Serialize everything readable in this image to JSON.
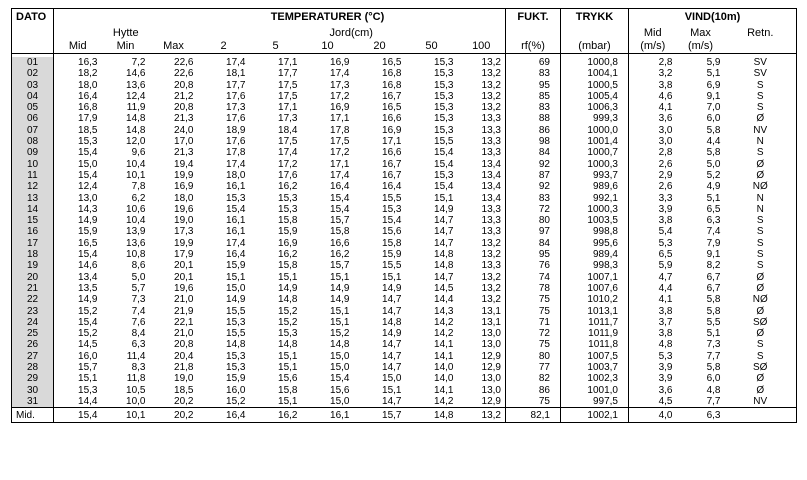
{
  "header": {
    "dato": "DATO",
    "temperaturer": "TEMPERATURER (°C)",
    "fukt": "FUKT.",
    "trykk": "TRYKK",
    "vind": "VIND(10m)",
    "hytte": "Hytte",
    "jord": "Jord(cm)",
    "vind_mid": "Mid",
    "vind_max": "Max",
    "retn": "Retn.",
    "col_mid": "Mid",
    "col_min": "Min",
    "col_max": "Max",
    "depth_2": "2",
    "depth_5": "5",
    "depth_10": "10",
    "depth_20": "20",
    "depth_50": "50",
    "depth_100": "100",
    "rf_unit": "rf(%)",
    "mbar_unit": "(mbar)",
    "ms_unit_mid": "(m/s)",
    "ms_unit_max": "(m/s)"
  },
  "rows": [
    [
      "01",
      "16,3",
      "7,2",
      "22,6",
      "17,4",
      "17,1",
      "16,9",
      "16,5",
      "15,3",
      "13,2",
      "69",
      "1000,8",
      "2,8",
      "5,9",
      "SV"
    ],
    [
      "02",
      "18,2",
      "14,6",
      "22,6",
      "18,1",
      "17,7",
      "17,4",
      "16,8",
      "15,3",
      "13,2",
      "83",
      "1004,1",
      "3,2",
      "5,1",
      "SV"
    ],
    [
      "03",
      "18,0",
      "13,6",
      "20,8",
      "17,7",
      "17,5",
      "17,3",
      "16,8",
      "15,3",
      "13,2",
      "95",
      "1000,5",
      "3,8",
      "6,9",
      "S"
    ],
    [
      "04",
      "16,4",
      "12,4",
      "21,2",
      "17,6",
      "17,5",
      "17,2",
      "16,7",
      "15,3",
      "13,2",
      "85",
      "1005,4",
      "4,6",
      "9,1",
      "S"
    ],
    [
      "05",
      "16,8",
      "11,9",
      "20,8",
      "17,3",
      "17,1",
      "16,9",
      "16,5",
      "15,3",
      "13,2",
      "83",
      "1006,3",
      "4,1",
      "7,0",
      "S"
    ],
    [
      "06",
      "17,9",
      "14,8",
      "21,3",
      "17,6",
      "17,3",
      "17,1",
      "16,6",
      "15,3",
      "13,3",
      "88",
      "999,3",
      "3,6",
      "6,0",
      "Ø"
    ],
    [
      "07",
      "18,5",
      "14,8",
      "24,0",
      "18,9",
      "18,4",
      "17,8",
      "16,9",
      "15,3",
      "13,3",
      "86",
      "1000,0",
      "3,0",
      "5,8",
      "NV"
    ],
    [
      "08",
      "15,3",
      "12,0",
      "17,0",
      "17,6",
      "17,5",
      "17,5",
      "17,1",
      "15,5",
      "13,3",
      "98",
      "1001,4",
      "3,0",
      "4,4",
      "N"
    ],
    [
      "09",
      "15,4",
      "9,6",
      "21,3",
      "17,8",
      "17,4",
      "17,2",
      "16,6",
      "15,4",
      "13,3",
      "84",
      "1000,7",
      "2,8",
      "5,8",
      "S"
    ],
    [
      "10",
      "15,0",
      "10,4",
      "19,4",
      "17,4",
      "17,2",
      "17,1",
      "16,7",
      "15,4",
      "13,4",
      "92",
      "1000,3",
      "2,6",
      "5,0",
      "Ø"
    ],
    [
      "11",
      "15,4",
      "10,1",
      "19,9",
      "18,0",
      "17,6",
      "17,4",
      "16,7",
      "15,3",
      "13,4",
      "87",
      "993,7",
      "2,9",
      "5,2",
      "Ø"
    ],
    [
      "12",
      "12,4",
      "7,8",
      "16,9",
      "16,1",
      "16,2",
      "16,4",
      "16,4",
      "15,4",
      "13,4",
      "92",
      "989,6",
      "2,6",
      "4,9",
      "NØ"
    ],
    [
      "13",
      "13,0",
      "6,2",
      "18,0",
      "15,3",
      "15,3",
      "15,4",
      "15,5",
      "15,1",
      "13,4",
      "83",
      "992,1",
      "3,3",
      "5,1",
      "N"
    ],
    [
      "14",
      "14,3",
      "10,6",
      "19,6",
      "15,4",
      "15,3",
      "15,4",
      "15,3",
      "14,9",
      "13,3",
      "72",
      "1000,3",
      "3,9",
      "6,5",
      "N"
    ],
    [
      "15",
      "14,9",
      "10,4",
      "19,0",
      "16,1",
      "15,8",
      "15,7",
      "15,4",
      "14,7",
      "13,3",
      "80",
      "1003,5",
      "3,8",
      "6,3",
      "S"
    ],
    [
      "16",
      "15,9",
      "13,9",
      "17,3",
      "16,1",
      "15,9",
      "15,8",
      "15,6",
      "14,7",
      "13,3",
      "97",
      "998,8",
      "5,4",
      "7,4",
      "S"
    ],
    [
      "17",
      "16,5",
      "13,6",
      "19,9",
      "17,4",
      "16,9",
      "16,6",
      "15,8",
      "14,7",
      "13,2",
      "84",
      "995,6",
      "5,3",
      "7,9",
      "S"
    ],
    [
      "18",
      "15,4",
      "10,8",
      "17,9",
      "16,4",
      "16,2",
      "16,2",
      "15,9",
      "14,8",
      "13,2",
      "95",
      "989,4",
      "6,5",
      "9,1",
      "S"
    ],
    [
      "19",
      "14,6",
      "8,6",
      "20,1",
      "15,9",
      "15,8",
      "15,7",
      "15,5",
      "14,8",
      "13,3",
      "76",
      "998,3",
      "5,9",
      "8,2",
      "S"
    ],
    [
      "20",
      "13,4",
      "5,0",
      "20,1",
      "15,1",
      "15,1",
      "15,1",
      "15,1",
      "14,7",
      "13,2",
      "74",
      "1007,1",
      "4,7",
      "6,7",
      "Ø"
    ],
    [
      "21",
      "13,5",
      "5,7",
      "19,6",
      "15,0",
      "14,9",
      "14,9",
      "14,9",
      "14,5",
      "13,2",
      "78",
      "1007,6",
      "4,4",
      "6,7",
      "Ø"
    ],
    [
      "22",
      "14,9",
      "7,3",
      "21,0",
      "14,9",
      "14,8",
      "14,9",
      "14,7",
      "14,4",
      "13,2",
      "75",
      "1010,2",
      "4,1",
      "5,8",
      "NØ"
    ],
    [
      "23",
      "15,2",
      "7,4",
      "21,9",
      "15,5",
      "15,2",
      "15,1",
      "14,7",
      "14,3",
      "13,1",
      "75",
      "1013,1",
      "3,8",
      "5,8",
      "Ø"
    ],
    [
      "24",
      "15,4",
      "7,6",
      "22,1",
      "15,3",
      "15,2",
      "15,1",
      "14,8",
      "14,2",
      "13,1",
      "71",
      "1011,7",
      "3,7",
      "5,5",
      "SØ"
    ],
    [
      "25",
      "15,2",
      "8,4",
      "21,0",
      "15,5",
      "15,3",
      "15,2",
      "14,9",
      "14,2",
      "13,0",
      "72",
      "1011,9",
      "3,8",
      "5,1",
      "Ø"
    ],
    [
      "26",
      "14,5",
      "6,3",
      "20,8",
      "14,8",
      "14,8",
      "14,8",
      "14,7",
      "14,1",
      "13,0",
      "75",
      "1011,8",
      "4,8",
      "7,3",
      "S"
    ],
    [
      "27",
      "16,0",
      "11,4",
      "20,4",
      "15,3",
      "15,1",
      "15,0",
      "14,7",
      "14,1",
      "12,9",
      "80",
      "1007,5",
      "5,3",
      "7,7",
      "S"
    ],
    [
      "28",
      "15,7",
      "8,3",
      "21,8",
      "15,3",
      "15,1",
      "15,0",
      "14,7",
      "14,0",
      "12,9",
      "77",
      "1003,7",
      "3,9",
      "5,8",
      "SØ"
    ],
    [
      "29",
      "15,1",
      "11,8",
      "19,0",
      "15,9",
      "15,6",
      "15,4",
      "15,0",
      "14,0",
      "13,0",
      "82",
      "1002,3",
      "3,9",
      "6,0",
      "Ø"
    ],
    [
      "30",
      "15,3",
      "10,5",
      "18,5",
      "16,0",
      "15,8",
      "15,6",
      "15,1",
      "14,1",
      "13,0",
      "86",
      "1001,0",
      "3,6",
      "4,8",
      "Ø"
    ],
    [
      "31",
      "14,4",
      "10,0",
      "20,2",
      "15,2",
      "15,1",
      "15,0",
      "14,7",
      "14,2",
      "12,9",
      "75",
      "997,5",
      "4,5",
      "7,7",
      "NV"
    ]
  ],
  "summary": {
    "label": "Mid.",
    "values": [
      "15,4",
      "10,1",
      "20,2",
      "16,4",
      "16,2",
      "16,1",
      "15,7",
      "14,8",
      "13,2",
      "82,1",
      "1002,1",
      "4,0",
      "6,3",
      ""
    ]
  }
}
